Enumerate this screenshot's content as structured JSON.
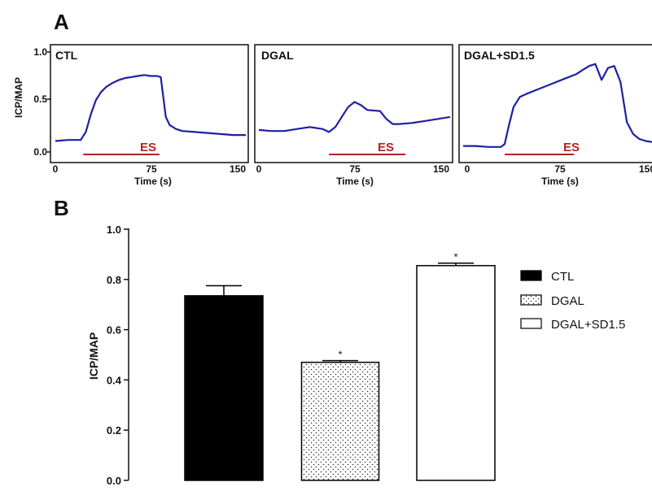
{
  "panel_a": {
    "letter": "A",
    "ylabel": "ICP/MAP",
    "xlabel": "Time (s)",
    "y_ticks": [
      "1.0",
      "0.5",
      "0.0"
    ],
    "x_ticks": [
      "0",
      "75",
      "150"
    ],
    "es_label": "ES",
    "trace_color": "#1f1fa3",
    "es_color": "#b22222"
  },
  "panel_b": {
    "letter": "B",
    "ylabel": "ICP/MAP",
    "y_ticks": [
      "1.0",
      "0.8",
      "0.6",
      "0.4",
      "0.2",
      "0.0"
    ],
    "legend": [
      {
        "label": "CTL",
        "fill": "solid"
      },
      {
        "label": "DGAL",
        "fill": "dotted"
      },
      {
        "label": "DGAL+SD1.5",
        "fill": "white"
      }
    ],
    "significance_marker": "*"
  },
  "chart_data": [
    {
      "type": "line",
      "title": "CTL",
      "xlabel": "Time (s)",
      "ylabel": "ICP/MAP",
      "xlim": [
        0,
        150
      ],
      "ylim": [
        0,
        1.0
      ],
      "annotation": "ES",
      "es_interval": [
        22,
        82
      ],
      "x": [
        0,
        10,
        20,
        24,
        28,
        32,
        36,
        40,
        45,
        50,
        55,
        60,
        65,
        70,
        75,
        80,
        83,
        85,
        87,
        90,
        95,
        100,
        110,
        120,
        130,
        140,
        150
      ],
      "y": [
        0.11,
        0.12,
        0.12,
        0.2,
        0.38,
        0.52,
        0.6,
        0.65,
        0.69,
        0.72,
        0.74,
        0.75,
        0.76,
        0.77,
        0.76,
        0.76,
        0.75,
        0.55,
        0.35,
        0.27,
        0.23,
        0.21,
        0.2,
        0.19,
        0.18,
        0.17,
        0.17
      ]
    },
    {
      "type": "line",
      "title": "DGAL",
      "xlabel": "Time (s)",
      "ylabel": "ICP/MAP",
      "xlim": [
        0,
        150
      ],
      "ylim": [
        0,
        1.0
      ],
      "annotation": "ES",
      "es_interval": [
        55,
        115
      ],
      "x": [
        0,
        10,
        20,
        30,
        40,
        50,
        55,
        60,
        65,
        70,
        75,
        80,
        85,
        95,
        100,
        105,
        110,
        120,
        130,
        140,
        150
      ],
      "y": [
        0.22,
        0.21,
        0.21,
        0.23,
        0.25,
        0.23,
        0.2,
        0.25,
        0.35,
        0.45,
        0.5,
        0.47,
        0.42,
        0.41,
        0.33,
        0.28,
        0.28,
        0.29,
        0.31,
        0.33,
        0.35
      ]
    },
    {
      "type": "line",
      "title": "DGAL+SD1.5",
      "xlabel": "Time (s)",
      "ylabel": "ICP/MAP",
      "xlim": [
        0,
        150
      ],
      "ylim": [
        0,
        1.0
      ],
      "annotation": "ES",
      "es_interval": [
        33,
        88
      ],
      "x": [
        0,
        10,
        20,
        30,
        33,
        36,
        40,
        45,
        50,
        60,
        70,
        80,
        90,
        95,
        100,
        105,
        110,
        115,
        120,
        125,
        130,
        135,
        140,
        145,
        150
      ],
      "y": [
        0.06,
        0.06,
        0.05,
        0.05,
        0.08,
        0.25,
        0.45,
        0.55,
        0.58,
        0.63,
        0.68,
        0.73,
        0.78,
        0.82,
        0.86,
        0.88,
        0.72,
        0.84,
        0.86,
        0.7,
        0.3,
        0.18,
        0.13,
        0.11,
        0.1
      ]
    },
    {
      "type": "bar",
      "categories": [
        "CTL",
        "DGAL",
        "DGAL+SD1.5"
      ],
      "values": [
        0.735,
        0.47,
        0.855
      ],
      "errors": [
        0.04,
        0.007,
        0.01
      ],
      "significance": [
        "",
        "*",
        "*"
      ],
      "ylabel": "ICP/MAP",
      "ylim": [
        0,
        1.0
      ],
      "legend_position": "right"
    }
  ]
}
